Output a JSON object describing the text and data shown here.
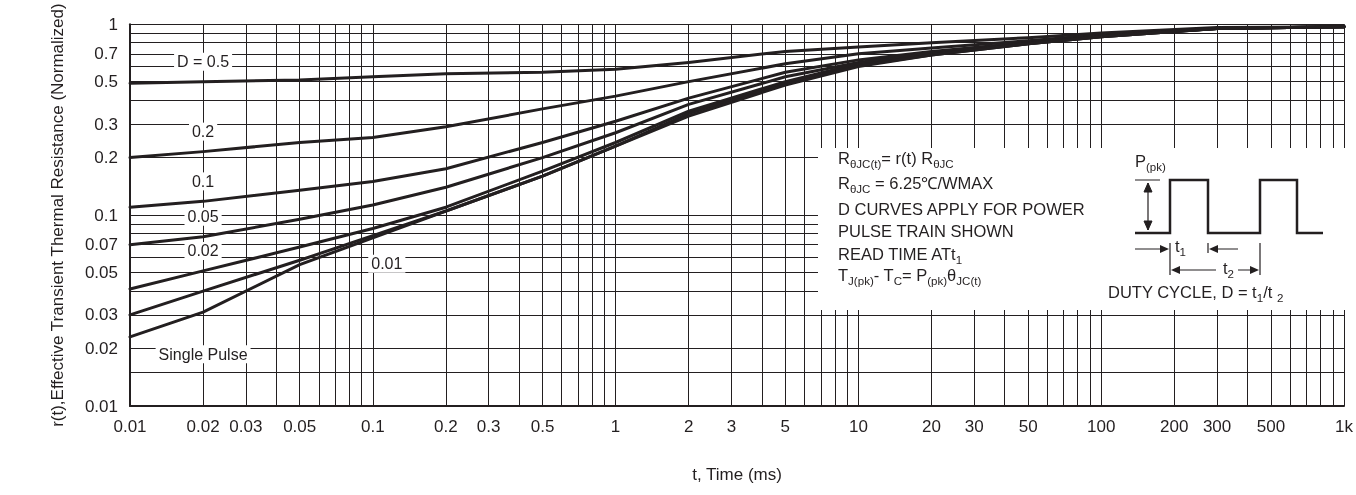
{
  "chart_data": {
    "type": "line",
    "xlabel": "t, Time (ms)",
    "ylabel": "r(t),Effective Transient Thermal Resistance (Normalized)",
    "log": "xy",
    "grid": true,
    "legend": false,
    "marker": "none",
    "line_style": "solid",
    "x": [
      0.01,
      0.02,
      0.05,
      0.1,
      0.2,
      0.5,
      1,
      2,
      5,
      10,
      20,
      50,
      100,
      300,
      1000
    ],
    "xlim": [
      0.01,
      1000
    ],
    "ylim": [
      0.01,
      1
    ],
    "xticks": [
      0.01,
      0.02,
      0.03,
      {
        "value": 0.04,
        "label": null
      },
      0.05,
      {
        "value": 0.06,
        "label": null
      },
      {
        "value": 0.07,
        "label": null
      },
      {
        "value": 0.08,
        "label": null
      },
      {
        "value": 0.09,
        "label": null
      },
      0.1,
      0.2,
      0.3,
      {
        "value": 0.4,
        "label": null
      },
      0.5,
      {
        "value": 0.6,
        "label": null
      },
      {
        "value": 0.7,
        "label": null
      },
      {
        "value": 0.8,
        "label": null
      },
      {
        "value": 0.9,
        "label": null
      },
      1,
      2,
      3,
      {
        "value": 4,
        "label": null
      },
      5,
      {
        "value": 6,
        "label": null
      },
      {
        "value": 7,
        "label": null
      },
      {
        "value": 8,
        "label": null
      },
      {
        "value": 9,
        "label": null
      },
      10,
      20,
      30,
      {
        "value": 40,
        "label": null
      },
      50,
      {
        "value": 60,
        "label": null
      },
      {
        "value": 70,
        "label": null
      },
      {
        "value": 80,
        "label": null
      },
      {
        "value": 90,
        "label": null
      },
      100,
      200,
      300,
      {
        "value": 400,
        "label": null
      },
      500,
      {
        "value": 600,
        "label": null
      },
      {
        "value": 700,
        "label": null
      },
      {
        "value": 800,
        "label": null
      },
      {
        "value": 900,
        "label": null
      },
      {
        "value": 1000,
        "label": "1k"
      }
    ],
    "yticks": [
      0.01,
      {
        "value": 0.015,
        "label": null
      },
      0.02,
      0.03,
      {
        "value": 0.04,
        "label": null
      },
      0.05,
      {
        "value": 0.06,
        "label": null
      },
      0.07,
      {
        "value": 0.08,
        "label": null
      },
      {
        "value": 0.09,
        "label": null
      },
      0.1,
      0.2,
      0.3,
      {
        "value": 0.4,
        "label": null
      },
      0.5,
      {
        "value": 0.6,
        "label": null
      },
      0.7,
      {
        "value": 0.8,
        "label": null
      },
      {
        "value": 0.9,
        "label": null
      },
      1
    ],
    "series": [
      {
        "name": "D = 0.5",
        "color": "#231f20",
        "values": [
          0.49,
          0.5,
          0.51,
          0.53,
          0.55,
          0.56,
          0.58,
          0.63,
          0.72,
          0.76,
          0.8,
          0.85,
          0.9,
          0.96,
          0.97
        ]
      },
      {
        "name": "0.2",
        "color": "#231f20",
        "values": [
          0.2,
          0.215,
          0.24,
          0.255,
          0.29,
          0.36,
          0.42,
          0.5,
          0.62,
          0.7,
          0.75,
          0.82,
          0.88,
          0.95,
          0.97
        ]
      },
      {
        "name": "0.1",
        "color": "#231f20",
        "values": [
          0.11,
          0.118,
          0.135,
          0.15,
          0.175,
          0.24,
          0.31,
          0.41,
          0.56,
          0.65,
          0.72,
          0.8,
          0.87,
          0.95,
          0.97
        ]
      },
      {
        "name": "0.05",
        "color": "#231f20",
        "values": [
          0.07,
          0.077,
          0.095,
          0.113,
          0.14,
          0.2,
          0.27,
          0.38,
          0.53,
          0.63,
          0.71,
          0.8,
          0.87,
          0.95,
          0.97
        ]
      },
      {
        "name": "0.02",
        "color": "#231f20",
        "values": [
          0.041,
          0.051,
          0.068,
          0.085,
          0.11,
          0.17,
          0.24,
          0.35,
          0.5,
          0.62,
          0.7,
          0.79,
          0.86,
          0.95,
          0.97
        ]
      },
      {
        "name": "0.01",
        "color": "#231f20",
        "values": [
          0.03,
          0.04,
          0.058,
          0.078,
          0.105,
          0.16,
          0.23,
          0.34,
          0.49,
          0.61,
          0.69,
          0.79,
          0.86,
          0.95,
          0.97
        ]
      },
      {
        "name": "Single Pulse",
        "color": "#231f20",
        "values": [
          0.023,
          0.031,
          0.055,
          0.076,
          0.105,
          0.16,
          0.23,
          0.33,
          0.48,
          0.6,
          0.69,
          0.79,
          0.86,
          0.95,
          0.97
        ]
      }
    ],
    "annotations": [
      "R$_{θJC(t)}$= r(t) R$_{θJC}$",
      "R$_{θJC}$ = 6.25℃/WMAX",
      "D CURVES APPLY FOR POWER",
      "PULSE TRAIN SHOWN",
      "READ TIME ATt$_{1}$",
      "T$_{J(pk)}$- T$_{C}$= P$_{(pk)}$θ$_{JC(t)}$",
      "P$_{(pk)}$",
      "t$_{1}$",
      "t$_{2}$",
      "DUTY CYCLE, D = t$_{1}$/t $_{2}$"
    ]
  }
}
